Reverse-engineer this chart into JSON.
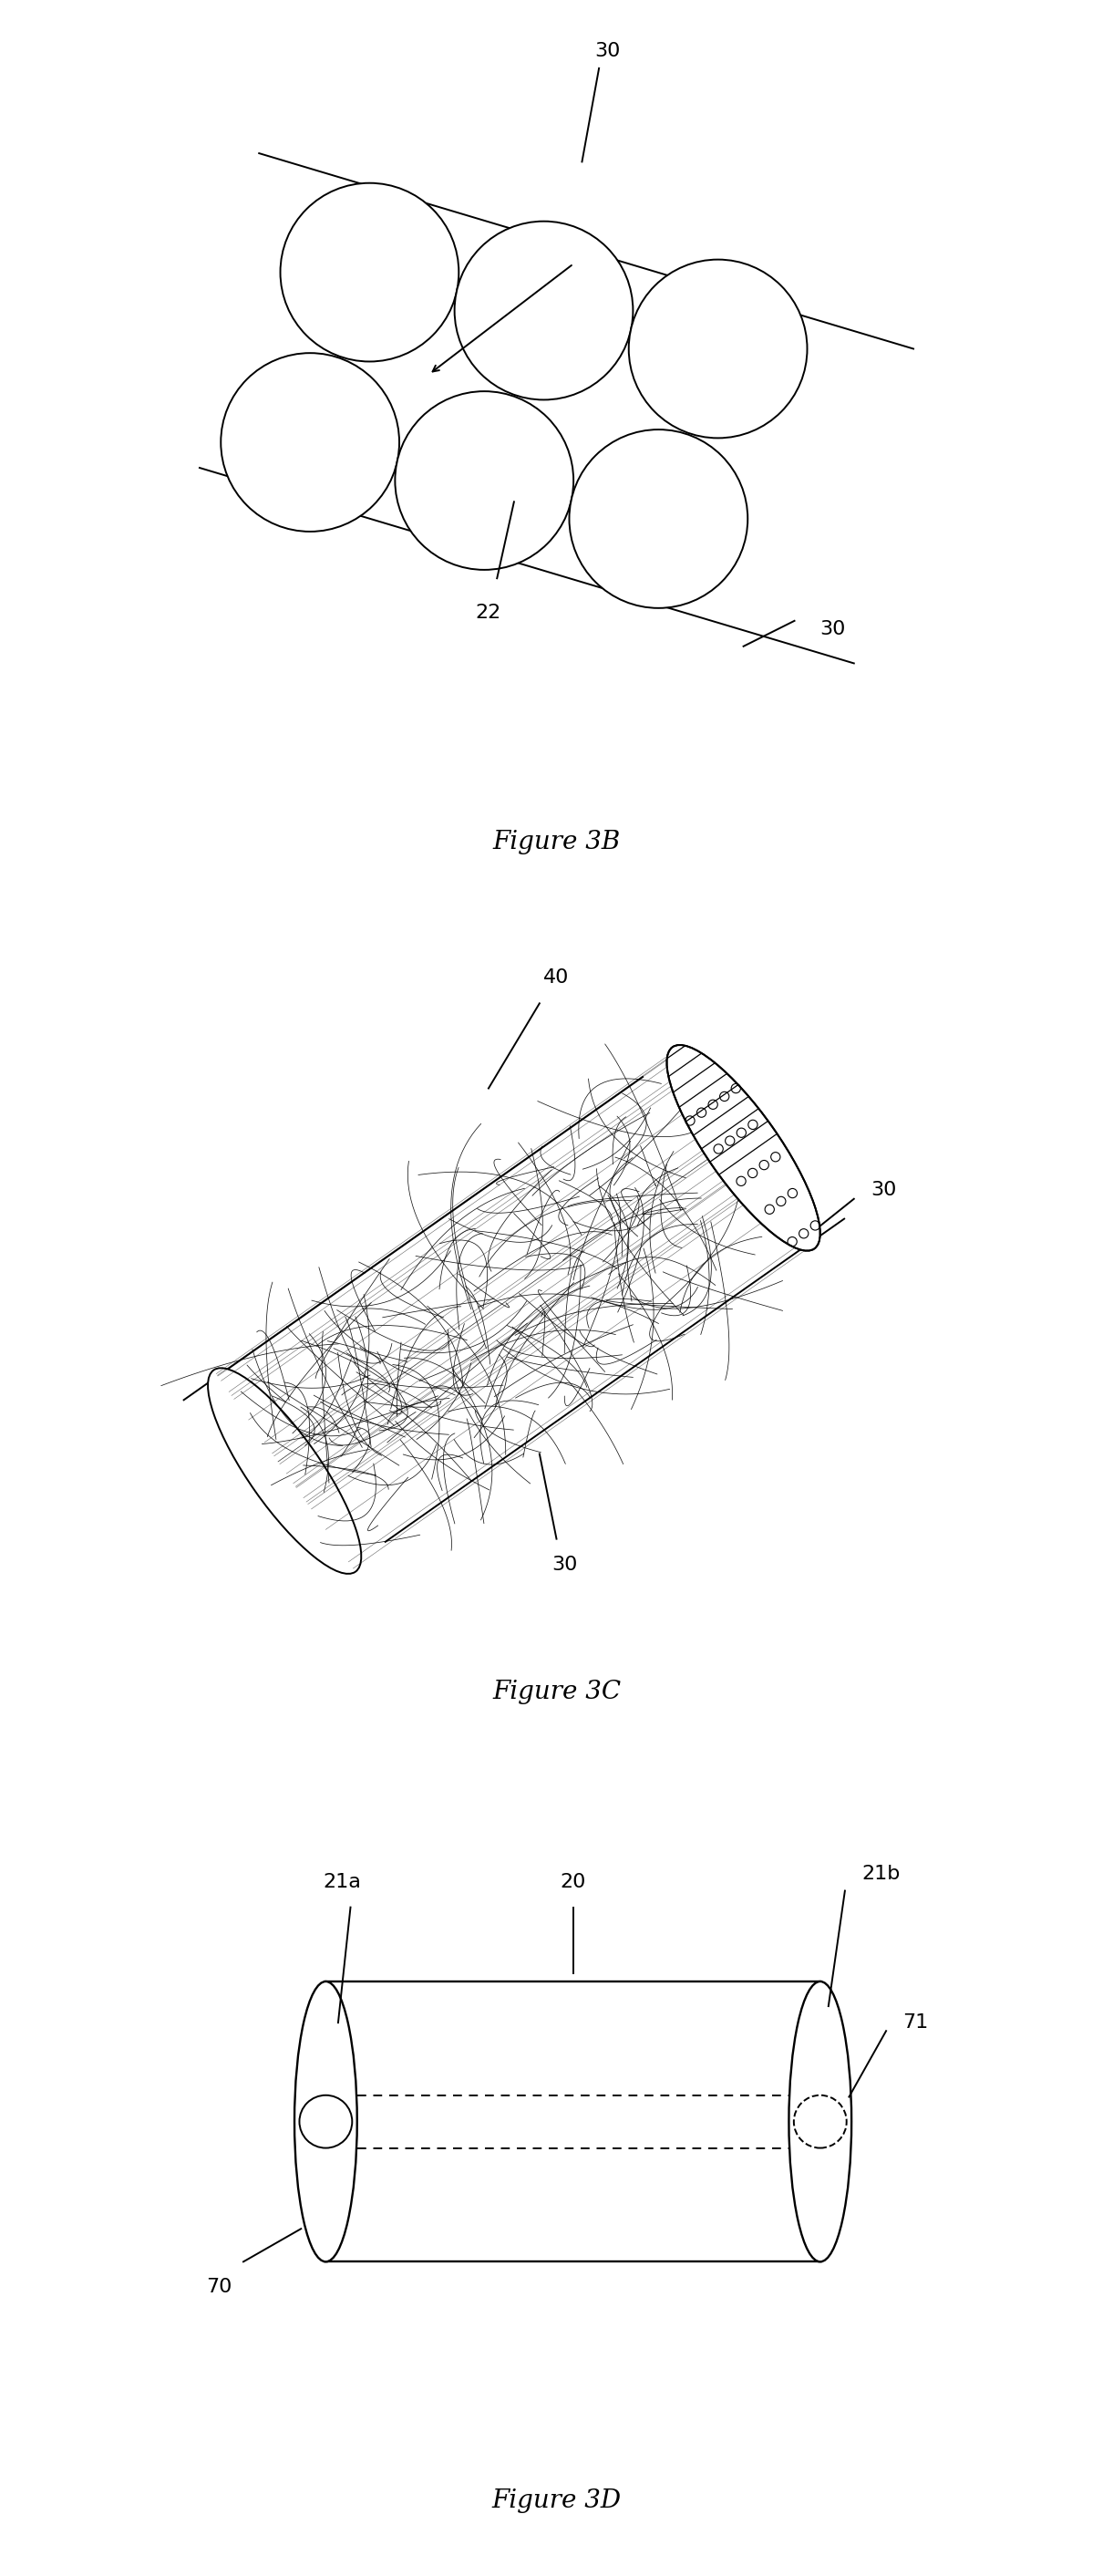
{
  "bg_color": "#ffffff",
  "line_color": "#000000",
  "fig3b_label": "Figure 3B",
  "fig3c_label": "Figure 3C",
  "fig3d_label": "Figure 3D",
  "fig_label_fontsize": 20,
  "anno_fontsize": 16
}
